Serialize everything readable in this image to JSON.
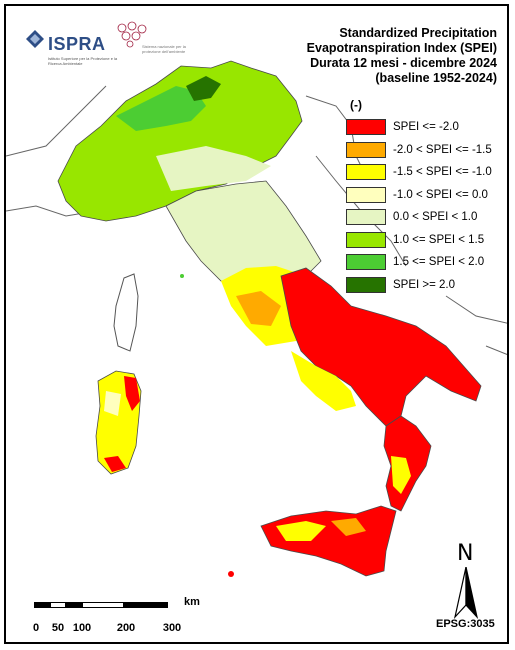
{
  "title": {
    "line1": "Standardized Precipitation",
    "line2": "Evapotranspiration  Index (SPEI)",
    "line3": "Durata 12 mesi - dicembre 2024",
    "line4": "(baseline 1952-2024)"
  },
  "logos": {
    "ispra_name": "ISPRA",
    "ispra_subtitle": "Istituto Superiore per la Protezione e la Ricerca Ambientale",
    "snpa_subtitle": "Sistema nazionale per la protezione dell'ambiente"
  },
  "legend": {
    "unit": "(-)",
    "items": [
      {
        "label": "SPEI <= -2.0",
        "color": "#ff0000"
      },
      {
        "label": "-2.0 < SPEI <= -1.5",
        "color": "#ffaa00"
      },
      {
        "label": "-1.5 < SPEI <= -1.0",
        "color": "#ffff00"
      },
      {
        "label": "-1.0 < SPEI <= 0.0",
        "color": "#ffffbe"
      },
      {
        "label": "0.0 < SPEI < 1.0",
        "color": "#e6f5c3"
      },
      {
        "label": "1.0 <= SPEI < 1.5",
        "color": "#98e600"
      },
      {
        "label": "1.5 <= SPEI < 2.0",
        "color": "#4ccd33"
      },
      {
        "label": "SPEI >= 2.0",
        "color": "#267300"
      }
    ]
  },
  "scale_bar": {
    "unit": "km",
    "ticks": [
      "0",
      "50",
      "100",
      "200",
      "300"
    ]
  },
  "north_arrow": {
    "label": "N",
    "icon": "north-arrow-icon"
  },
  "projection": "EPSG:3035"
}
